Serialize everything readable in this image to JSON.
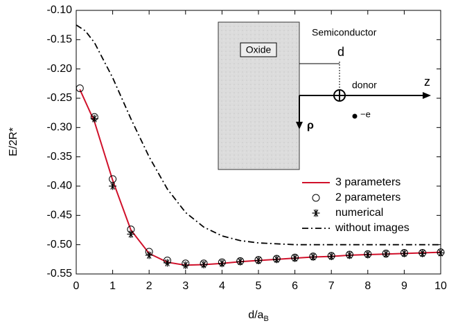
{
  "chart_data": {
    "type": "line",
    "x_label": "d/a",
    "x_label_subscript": "B",
    "y_label": "E/2R*",
    "xlim": [
      0,
      10
    ],
    "ylim": [
      -0.55,
      -0.1
    ],
    "xticks": [
      0,
      1,
      2,
      3,
      4,
      5,
      6,
      7,
      8,
      9,
      10
    ],
    "yticks": [
      {
        "value": -0.55,
        "label": "-0.55"
      },
      {
        "value": -0.5,
        "label": "-0.50"
      },
      {
        "value": -0.45,
        "label": "-0.45"
      },
      {
        "value": -0.4,
        "label": "-0.40"
      },
      {
        "value": -0.35,
        "label": "-0.35"
      },
      {
        "value": -0.3,
        "label": "-0.30"
      },
      {
        "value": -0.25,
        "label": "-0.25"
      },
      {
        "value": -0.2,
        "label": "-0.20"
      },
      {
        "value": -0.15,
        "label": "-0.15"
      },
      {
        "value": -0.1,
        "label": "-0.10"
      }
    ],
    "series": [
      {
        "name": "3 parameters",
        "color": "#d0102a",
        "style": "line",
        "x": [
          0.1,
          0.5,
          1,
          1.5,
          2,
          2.5,
          3,
          3.5,
          4,
          4.5,
          5,
          5.5,
          6,
          6.5,
          7,
          7.5,
          8,
          8.5,
          9,
          9.5,
          10
        ],
        "values": [
          -0.235,
          -0.29,
          -0.39,
          -0.475,
          -0.515,
          -0.53,
          -0.535,
          -0.534,
          -0.532,
          -0.529,
          -0.527,
          -0.525,
          -0.523,
          -0.521,
          -0.52,
          -0.518,
          -0.517,
          -0.516,
          -0.515,
          -0.514,
          -0.513
        ]
      },
      {
        "name": "2 parameters",
        "color": "#000000",
        "style": "circle",
        "x": [
          0.1,
          0.5,
          1,
          1.5,
          2,
          2.5,
          3,
          3.5,
          4,
          4.5,
          5,
          5.5,
          6,
          6.5,
          7,
          7.5,
          8,
          8.5,
          9,
          9.5,
          10
        ],
        "values": [
          -0.233,
          -0.282,
          -0.388,
          -0.474,
          -0.512,
          -0.527,
          -0.532,
          -0.532,
          -0.53,
          -0.528,
          -0.526,
          -0.524,
          -0.522,
          -0.52,
          -0.519,
          -0.517,
          -0.516,
          -0.515,
          -0.514,
          -0.514,
          -0.513
        ]
      },
      {
        "name": "numerical",
        "color": "#000000",
        "style": "star",
        "x": [
          0.5,
          1,
          1.5,
          2,
          2.5,
          3,
          3.5,
          4,
          4.5,
          5,
          5.5,
          6,
          6.5,
          7,
          7.5,
          8,
          8.5,
          9,
          9.5,
          10
        ],
        "values": [
          -0.285,
          -0.4,
          -0.482,
          -0.518,
          -0.531,
          -0.535,
          -0.534,
          -0.532,
          -0.529,
          -0.527,
          -0.525,
          -0.523,
          -0.521,
          -0.52,
          -0.518,
          -0.517,
          -0.516,
          -0.515,
          -0.515,
          -0.514
        ]
      },
      {
        "name": "without images",
        "color": "#000000",
        "style": "dashdot",
        "x": [
          0,
          0.25,
          0.5,
          1,
          1.5,
          2,
          2.5,
          3,
          3.5,
          4,
          4.5,
          5,
          6,
          7,
          8,
          9,
          10
        ],
        "values": [
          -0.125,
          -0.135,
          -0.155,
          -0.215,
          -0.285,
          -0.35,
          -0.405,
          -0.445,
          -0.47,
          -0.485,
          -0.493,
          -0.497,
          -0.5,
          -0.5,
          -0.5,
          -0.5,
          -0.5
        ]
      }
    ],
    "inset": {
      "oxide": "Oxide",
      "semiconductor": "Semiconductor",
      "d": "d",
      "donor": "donor",
      "z": "z",
      "rho": "ρ",
      "electron": "−e"
    }
  }
}
